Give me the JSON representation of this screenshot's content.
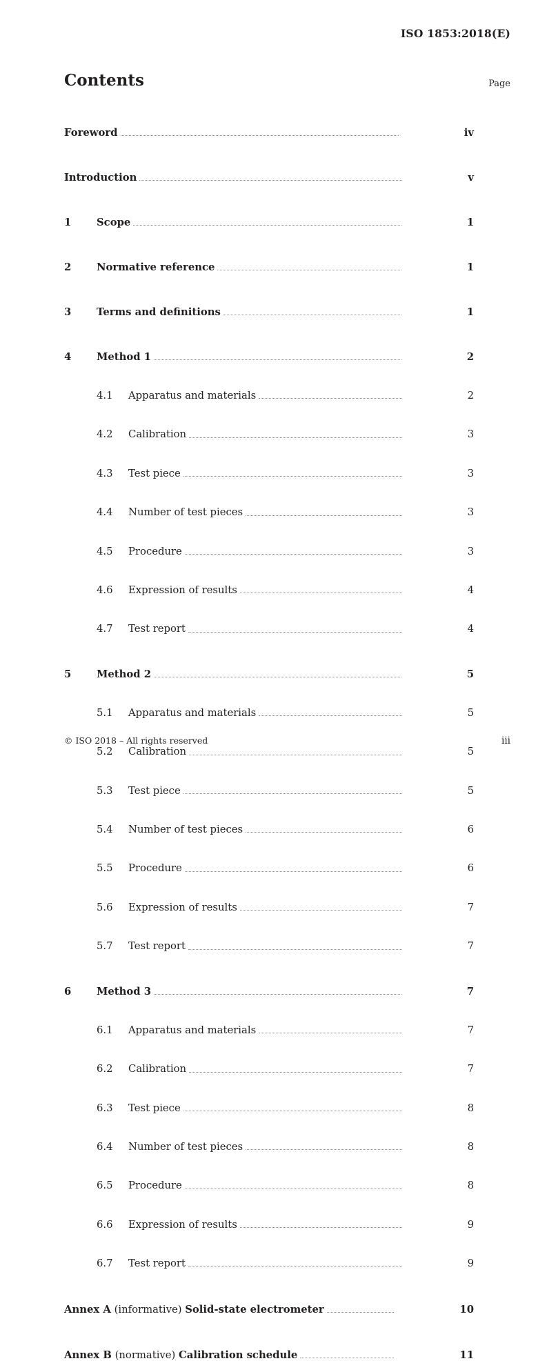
{
  "header": {
    "doc_ref": "ISO 1853:2018(E)"
  },
  "contents": {
    "title": "Contents",
    "page_label": "Page",
    "entries": [
      {
        "type": "front",
        "label": "Foreword",
        "page": "iv"
      },
      {
        "type": "front",
        "label": "Introduction",
        "page": "v"
      },
      {
        "type": "section",
        "num": "1",
        "label": "Scope",
        "page": "1"
      },
      {
        "type": "section",
        "num": "2",
        "label": "Normative reference",
        "page": "1"
      },
      {
        "type": "section",
        "num": "3",
        "label": "Terms and definitions",
        "page": "1"
      },
      {
        "type": "section",
        "num": "4",
        "label": "Method 1",
        "page": "2"
      },
      {
        "type": "sub",
        "num": "4.1",
        "label": "Apparatus and materials",
        "page": "2"
      },
      {
        "type": "sub",
        "num": "4.2",
        "label": "Calibration",
        "page": "3"
      },
      {
        "type": "sub",
        "num": "4.3",
        "label": "Test piece",
        "page": "3"
      },
      {
        "type": "sub",
        "num": "4.4",
        "label": "Number of test pieces",
        "page": "3"
      },
      {
        "type": "sub",
        "num": "4.5",
        "label": "Procedure",
        "page": "3"
      },
      {
        "type": "sub",
        "num": "4.6",
        "label": "Expression of results",
        "page": "4"
      },
      {
        "type": "sub",
        "num": "4.7",
        "label": "Test report",
        "page": "4"
      },
      {
        "type": "section",
        "num": "5",
        "label": "Method 2",
        "page": "5"
      },
      {
        "type": "sub",
        "num": "5.1",
        "label": "Apparatus and materials",
        "page": "5"
      },
      {
        "type": "sub",
        "num": "5.2",
        "label": "Calibration",
        "page": "5"
      },
      {
        "type": "sub",
        "num": "5.3",
        "label": "Test piece",
        "page": "5"
      },
      {
        "type": "sub",
        "num": "5.4",
        "label": "Number of test pieces",
        "page": "6"
      },
      {
        "type": "sub",
        "num": "5.5",
        "label": "Procedure",
        "page": "6"
      },
      {
        "type": "sub",
        "num": "5.6",
        "label": "Expression of results",
        "page": "7"
      },
      {
        "type": "sub",
        "num": "5.7",
        "label": "Test report",
        "page": "7"
      },
      {
        "type": "section",
        "num": "6",
        "label": "Method 3",
        "page": "7"
      },
      {
        "type": "sub",
        "num": "6.1",
        "label": "Apparatus and materials",
        "page": "7"
      },
      {
        "type": "sub",
        "num": "6.2",
        "label": "Calibration",
        "page": "7"
      },
      {
        "type": "sub",
        "num": "6.3",
        "label": "Test piece",
        "page": "8"
      },
      {
        "type": "sub",
        "num": "6.4",
        "label": "Number of test pieces",
        "page": "8"
      },
      {
        "type": "sub",
        "num": "6.5",
        "label": "Procedure",
        "page": "8"
      },
      {
        "type": "sub",
        "num": "6.6",
        "label": "Expression of results",
        "page": "9"
      },
      {
        "type": "sub",
        "num": "6.7",
        "label": "Test report",
        "page": "9"
      },
      {
        "type": "annex",
        "prefix": "Annex A",
        "qualifier": "(informative)",
        "label": "Solid-state electrometer",
        "page": "10"
      },
      {
        "type": "annex",
        "prefix": "Annex B",
        "qualifier": "(normative)",
        "label": "Calibration schedule",
        "page": "11"
      }
    ]
  },
  "footer": {
    "copyright": "© ISO 2018 – All rights reserved",
    "page_number": "iii"
  }
}
